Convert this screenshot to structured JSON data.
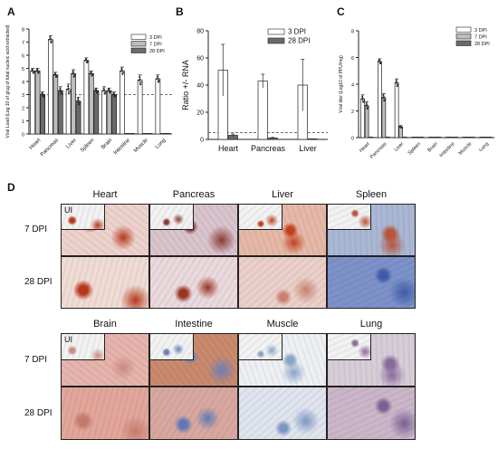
{
  "panels": {
    "a": "A",
    "b": "B",
    "c": "C",
    "d": "D"
  },
  "dpi_labels": [
    "3 DPI",
    "7 DPI",
    "28 DPI"
  ],
  "colors": {
    "d3": "#ffffff",
    "d7": "#bdbdbd",
    "d28": "#6b6b6b",
    "axis": "#222222",
    "inset": "#f2f2f2"
  },
  "chart_data": [
    {
      "type": "bar",
      "ylabel": "Viral Load (Log 10 of g/ug of total nucleic acid extracted)",
      "ylim": [
        0,
        8
      ],
      "yticks": [
        "0",
        "1",
        "2",
        "3",
        "4",
        "5",
        "6",
        "7",
        "8"
      ],
      "categories": [
        "Heart",
        "Pancreas",
        "Liver",
        "Spleen",
        "Brain",
        "Intestine",
        "Muscle",
        "Lung"
      ],
      "threshold": 3,
      "series": [
        {
          "name": "3 DPI",
          "values": [
            4.8,
            7.2,
            3.4,
            5.6,
            3.3,
            4.8,
            4.1,
            4.2
          ],
          "err": [
            0.2,
            0.3,
            0.4,
            0.2,
            0.3,
            0.3,
            0.4,
            0.3
          ]
        },
        {
          "name": "7 DPI",
          "values": [
            4.8,
            4.5,
            4.6,
            4.6,
            3.3,
            0,
            0,
            0
          ],
          "err": [
            0.2,
            0.2,
            0.3,
            0.2,
            0.2,
            0,
            0,
            0
          ]
        },
        {
          "name": "28 DPI",
          "values": [
            3.0,
            3.3,
            2.5,
            3.3,
            3.0,
            0,
            0,
            0
          ],
          "err": [
            0.2,
            0.3,
            0.3,
            0.2,
            0.2,
            0,
            0,
            0
          ]
        }
      ]
    },
    {
      "type": "bar",
      "ylabel": "Ratio +/- RNA",
      "ylim": [
        0,
        80
      ],
      "yticks": [
        "0",
        "20",
        "40",
        "60",
        "80"
      ],
      "categories": [
        "Heart",
        "Pancreas",
        "Liver"
      ],
      "threshold": 5,
      "series": [
        {
          "name": "3 DPI",
          "values": [
            51,
            43,
            40
          ],
          "err": [
            19,
            5,
            19
          ]
        },
        {
          "name": "28 DPI",
          "values": [
            3,
            1,
            0
          ],
          "err": [
            1,
            0.5,
            0
          ]
        }
      ]
    },
    {
      "type": "bar",
      "ylabel": "Viral titer (Log10 of PFU/mg)",
      "ylim": [
        0,
        8
      ],
      "yticks": [
        "0",
        "2",
        "4",
        "6",
        "8"
      ],
      "categories": [
        "Heart",
        "Pancreas",
        "Liver",
        "Spleen",
        "Brain",
        "Intestine",
        "Muscle",
        "Lung"
      ],
      "series": [
        {
          "name": "3 DPI",
          "values": [
            2.9,
            5.7,
            4.1,
            0,
            0,
            0,
            0,
            0
          ],
          "err": [
            0.3,
            0.2,
            0.3,
            0,
            0,
            0,
            0,
            0
          ]
        },
        {
          "name": "7 DPI",
          "values": [
            2.4,
            3.0,
            0.8,
            0,
            0,
            0,
            0,
            0
          ],
          "err": [
            0.3,
            0.3,
            0.1,
            0,
            0,
            0,
            0,
            0
          ]
        },
        {
          "name": "28 DPI",
          "values": [
            0,
            0,
            0,
            0,
            0,
            0,
            0,
            0
          ],
          "err": [
            0,
            0,
            0,
            0,
            0,
            0,
            0,
            0
          ]
        }
      ]
    }
  ],
  "histology": {
    "top_cols": [
      "Heart",
      "Pancreas",
      "Liver",
      "Spleen"
    ],
    "bottom_cols": [
      "Brain",
      "Intestine",
      "Muscle",
      "Lung"
    ],
    "rows": [
      "7 DPI",
      "28 DPI"
    ],
    "inset_label": "UI",
    "top_tiles": [
      {
        "base": "#eed2cc",
        "spot": "#b5381c"
      },
      {
        "base": "#d9c3cc",
        "spot": "#8a3a35"
      },
      {
        "base": "#e6b8a8",
        "spot": "#c0411e"
      },
      {
        "base": "#aab8d6",
        "spot": "#b5553a"
      },
      {
        "base": "#f0dcd4",
        "spot": "#b5381c"
      },
      {
        "base": "#ead9dd",
        "spot": "#9a3322"
      },
      {
        "base": "#ead0c9",
        "spot": "#c98070"
      },
      {
        "base": "#7d92c9",
        "spot": "#3e5aa8"
      }
    ],
    "bottom_tiles": [
      {
        "base": "#e6b4ac",
        "spot": "#c98a80"
      },
      {
        "base": "#c98a6e",
        "spot": "#6d7fb5"
      },
      {
        "base": "#eef0f3",
        "spot": "#8aa3c8"
      },
      {
        "base": "#d7cdd8",
        "spot": "#8a6a9a"
      },
      {
        "base": "#e3a69b",
        "spot": "#c47a6a"
      },
      {
        "base": "#d8a8a0",
        "spot": "#5e78b5"
      },
      {
        "base": "#dfe4ee",
        "spot": "#7c96c4"
      },
      {
        "base": "#cbb6c9",
        "spot": "#7a5f92"
      }
    ]
  }
}
